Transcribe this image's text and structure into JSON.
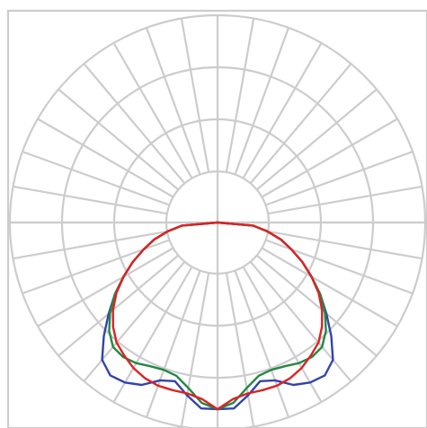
{
  "chart_data": {
    "type": "polar",
    "grid": true,
    "angle_step_deg": 10,
    "radial_rings": 4,
    "legend": "none",
    "series": [
      {
        "color": "#3344aa",
        "points": [
          [
            0,
            1.0
          ],
          [
            5,
            1.0
          ],
          [
            10,
            0.94
          ],
          [
            15,
            0.88
          ],
          [
            20,
            0.9
          ],
          [
            25,
            0.96
          ],
          [
            30,
            0.99
          ],
          [
            35,
            1.0
          ],
          [
            40,
            0.96
          ],
          [
            45,
            0.86
          ],
          [
            50,
            0.76
          ],
          [
            55,
            0.67
          ],
          [
            60,
            0.58
          ],
          [
            65,
            0.5
          ],
          [
            70,
            0.42
          ],
          [
            75,
            0.35
          ],
          [
            80,
            0.27
          ],
          [
            85,
            0.19
          ],
          [
            90,
            0.0
          ]
        ]
      },
      {
        "color": "#228844",
        "points": [
          [
            0,
            1.0
          ],
          [
            5,
            0.97
          ],
          [
            10,
            0.9
          ],
          [
            15,
            0.85
          ],
          [
            20,
            0.84
          ],
          [
            25,
            0.85
          ],
          [
            30,
            0.87
          ],
          [
            35,
            0.88
          ],
          [
            40,
            0.87
          ],
          [
            45,
            0.82
          ],
          [
            50,
            0.75
          ],
          [
            55,
            0.67
          ],
          [
            60,
            0.58
          ],
          [
            65,
            0.5
          ],
          [
            70,
            0.42
          ],
          [
            75,
            0.35
          ],
          [
            80,
            0.27
          ],
          [
            85,
            0.19
          ],
          [
            90,
            0.0
          ]
        ]
      },
      {
        "color": "#dd2222",
        "points": [
          [
            0,
            1.0
          ],
          [
            5,
            0.95
          ],
          [
            10,
            0.93
          ],
          [
            15,
            0.93
          ],
          [
            20,
            0.93
          ],
          [
            25,
            0.92
          ],
          [
            30,
            0.9
          ],
          [
            35,
            0.87
          ],
          [
            40,
            0.84
          ],
          [
            45,
            0.79
          ],
          [
            50,
            0.73
          ],
          [
            55,
            0.66
          ],
          [
            60,
            0.58
          ],
          [
            65,
            0.5
          ],
          [
            70,
            0.42
          ],
          [
            75,
            0.35
          ],
          [
            80,
            0.27
          ],
          [
            85,
            0.19
          ],
          [
            90,
            0.0
          ]
        ]
      }
    ]
  }
}
